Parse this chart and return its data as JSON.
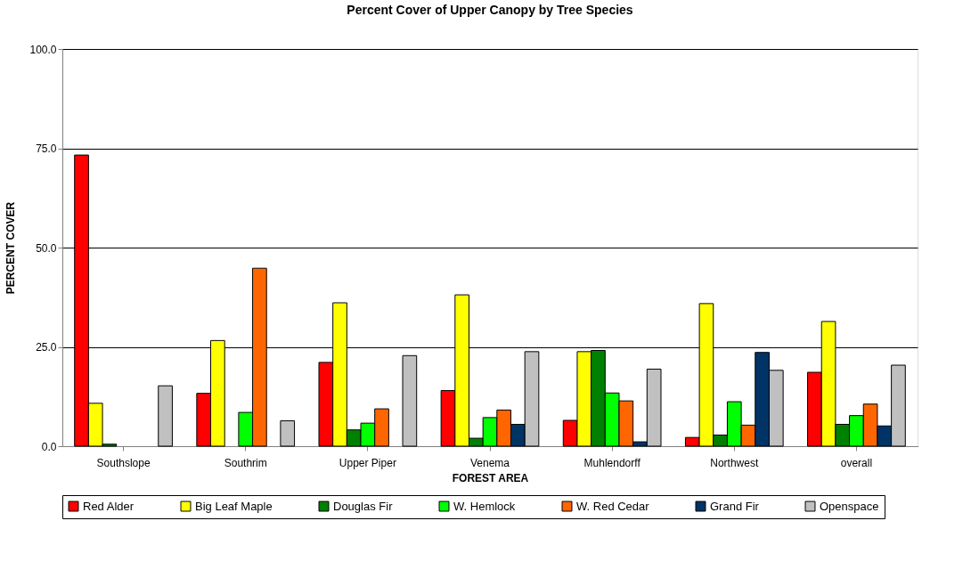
{
  "chart_data": {
    "type": "bar",
    "title": "Percent Cover of Upper Canopy by Tree Species",
    "xlabel": "FOREST AREA",
    "ylabel": "PERCENT COVER",
    "categories": [
      "Southslope",
      "Southrim",
      "Upper Piper",
      "Venema",
      "Muhlendorff",
      "Northwest",
      "overall"
    ],
    "series": [
      {
        "name": "Red Alder",
        "color": "#ff0000",
        "values": [
          73.3,
          13.3,
          21.1,
          14.0,
          6.5,
          2.2,
          18.6
        ]
      },
      {
        "name": "Big Leaf Maple",
        "color": "#ffff00",
        "values": [
          10.8,
          26.6,
          36.1,
          38.1,
          23.8,
          35.9,
          31.4
        ]
      },
      {
        "name": "Douglas Fir",
        "color": "#008000",
        "values": [
          0.5,
          0,
          4.1,
          2.0,
          24.1,
          2.8,
          5.5
        ]
      },
      {
        "name": "W. Hemlock",
        "color": "#00ff00",
        "values": [
          0,
          8.5,
          5.8,
          7.2,
          13.4,
          11.2,
          7.7
        ]
      },
      {
        "name": "W. Red Cedar",
        "color": "#ff6600",
        "values": [
          0,
          44.8,
          9.4,
          9.1,
          11.4,
          5.3,
          10.6
        ]
      },
      {
        "name": "Grand Fir",
        "color": "#003366",
        "values": [
          0,
          0,
          0,
          5.5,
          1.1,
          23.6,
          5.1
        ]
      },
      {
        "name": "Openspace",
        "color": "#c0c0c0",
        "values": [
          15.2,
          6.4,
          22.8,
          23.8,
          19.4,
          19.1,
          20.4
        ]
      }
    ],
    "ylim": [
      0,
      100
    ],
    "yticks": [
      {
        "value": 0,
        "label": "0.0"
      },
      {
        "value": 25,
        "label": "25.0"
      },
      {
        "value": 50,
        "label": "50.0"
      },
      {
        "value": 75,
        "label": "75.0"
      },
      {
        "value": 100,
        "label": "100.0"
      }
    ],
    "grid": "y",
    "legend": "bottom"
  }
}
